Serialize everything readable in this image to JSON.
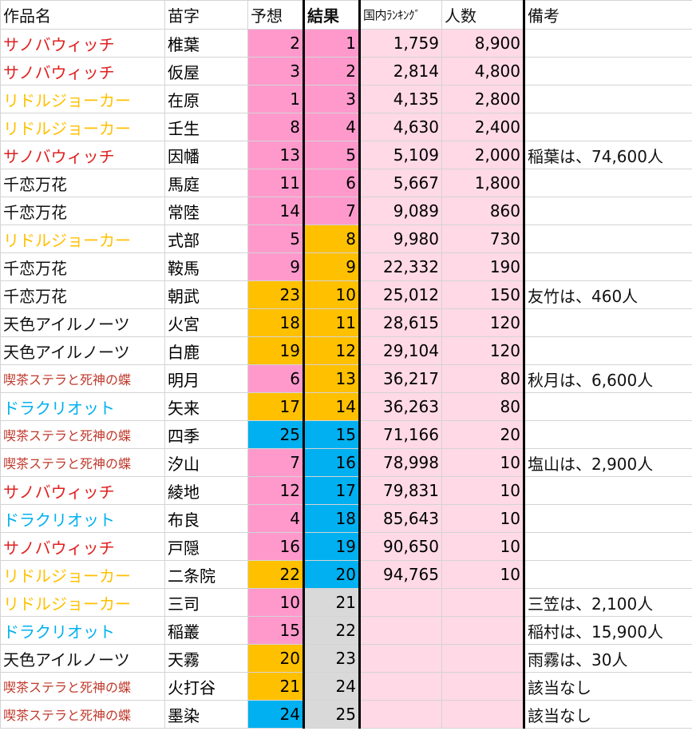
{
  "headers": {
    "work": "作品名",
    "surname": "苗字",
    "prediction": "予想",
    "result": "結果",
    "ranking": "国内ﾗﾝｷﾝｸﾞ",
    "people": "人数",
    "notes": "備考"
  },
  "colors": {
    "pink_strong": "#ff99cc",
    "pink_light": "#ffd9e6",
    "orange": "#ffc000",
    "blue": "#00b0f0",
    "gray": "#d9d9d9",
    "red_text": "#e02020",
    "yellow_text": "#ffc000",
    "blue_text": "#00b0f0",
    "darkred_text": "#c0392b"
  },
  "rows": [
    {
      "work": "サノバウィッチ",
      "work_color": "#e02020",
      "surname": "椎葉",
      "prediction": "2",
      "pred_bg": "#ff99cc",
      "result": "1",
      "result_bg": "#ff99cc",
      "ranking": "1,759",
      "people": "8,900",
      "notes": ""
    },
    {
      "work": "サノバウィッチ",
      "work_color": "#e02020",
      "surname": "仮屋",
      "prediction": "3",
      "pred_bg": "#ff99cc",
      "result": "2",
      "result_bg": "#ff99cc",
      "ranking": "2,814",
      "people": "4,800",
      "notes": ""
    },
    {
      "work": "リドルジョーカー",
      "work_color": "#ffc000",
      "surname": "在原",
      "prediction": "1",
      "pred_bg": "#ff99cc",
      "result": "3",
      "result_bg": "#ff99cc",
      "ranking": "4,135",
      "people": "2,800",
      "notes": ""
    },
    {
      "work": "リドルジョーカー",
      "work_color": "#ffc000",
      "surname": "壬生",
      "prediction": "8",
      "pred_bg": "#ff99cc",
      "result": "4",
      "result_bg": "#ff99cc",
      "ranking": "4,630",
      "people": "2,400",
      "notes": ""
    },
    {
      "work": "サノバウィッチ",
      "work_color": "#e02020",
      "surname": "因幡",
      "prediction": "13",
      "pred_bg": "#ff99cc",
      "result": "5",
      "result_bg": "#ff99cc",
      "ranking": "5,109",
      "people": "2,000",
      "notes": "稲葉は、74,600人"
    },
    {
      "work": "千恋万花",
      "work_color": "#111111",
      "surname": "馬庭",
      "prediction": "11",
      "pred_bg": "#ff99cc",
      "result": "6",
      "result_bg": "#ff99cc",
      "ranking": "5,667",
      "people": "1,800",
      "notes": ""
    },
    {
      "work": "千恋万花",
      "work_color": "#111111",
      "surname": "常陸",
      "prediction": "14",
      "pred_bg": "#ff99cc",
      "result": "7",
      "result_bg": "#ff99cc",
      "ranking": "9,089",
      "people": "860",
      "notes": ""
    },
    {
      "work": "リドルジョーカー",
      "work_color": "#ffc000",
      "surname": "式部",
      "prediction": "5",
      "pred_bg": "#ff99cc",
      "result": "8",
      "result_bg": "#ffc000",
      "ranking": "9,980",
      "people": "730",
      "notes": ""
    },
    {
      "work": "千恋万花",
      "work_color": "#111111",
      "surname": "鞍馬",
      "prediction": "9",
      "pred_bg": "#ff99cc",
      "result": "9",
      "result_bg": "#ffc000",
      "ranking": "22,332",
      "people": "190",
      "notes": ""
    },
    {
      "work": "千恋万花",
      "work_color": "#111111",
      "surname": "朝武",
      "prediction": "23",
      "pred_bg": "#ffc000",
      "result": "10",
      "result_bg": "#ffc000",
      "ranking": "25,012",
      "people": "150",
      "notes": "友竹は、460人"
    },
    {
      "work": "天色アイルノーツ",
      "work_color": "#111111",
      "surname": "火宮",
      "prediction": "18",
      "pred_bg": "#ffc000",
      "result": "11",
      "result_bg": "#ffc000",
      "ranking": "28,615",
      "people": "120",
      "notes": ""
    },
    {
      "work": "天色アイルノーツ",
      "work_color": "#111111",
      "surname": "白鹿",
      "prediction": "19",
      "pred_bg": "#ffc000",
      "result": "12",
      "result_bg": "#ffc000",
      "ranking": "29,104",
      "people": "120",
      "notes": ""
    },
    {
      "work": "喫茶ステラと死神の蝶",
      "work_color": "#c0392b",
      "small": true,
      "surname": "明月",
      "prediction": "6",
      "pred_bg": "#ff99cc",
      "result": "13",
      "result_bg": "#ffc000",
      "ranking": "36,217",
      "people": "80",
      "notes": "秋月は、6,600人"
    },
    {
      "work": "ドラクリオット",
      "work_color": "#00b0f0",
      "surname": "矢来",
      "prediction": "17",
      "pred_bg": "#ffc000",
      "result": "14",
      "result_bg": "#ffc000",
      "ranking": "36,263",
      "people": "80",
      "notes": ""
    },
    {
      "work": "喫茶ステラと死神の蝶",
      "work_color": "#c0392b",
      "small": true,
      "surname": "四季",
      "prediction": "25",
      "pred_bg": "#00b0f0",
      "result": "15",
      "result_bg": "#00b0f0",
      "ranking": "71,166",
      "people": "20",
      "notes": ""
    },
    {
      "work": "喫茶ステラと死神の蝶",
      "work_color": "#c0392b",
      "small": true,
      "surname": "汐山",
      "prediction": "7",
      "pred_bg": "#ff99cc",
      "result": "16",
      "result_bg": "#00b0f0",
      "ranking": "78,998",
      "people": "10",
      "notes": "塩山は、2,900人"
    },
    {
      "work": "サノバウィッチ",
      "work_color": "#e02020",
      "surname": "綾地",
      "prediction": "12",
      "pred_bg": "#ff99cc",
      "result": "17",
      "result_bg": "#00b0f0",
      "ranking": "79,831",
      "people": "10",
      "notes": ""
    },
    {
      "work": "ドラクリオット",
      "work_color": "#00b0f0",
      "surname": "布良",
      "prediction": "4",
      "pred_bg": "#ff99cc",
      "result": "18",
      "result_bg": "#00b0f0",
      "ranking": "85,643",
      "people": "10",
      "notes": ""
    },
    {
      "work": "サノバウィッチ",
      "work_color": "#e02020",
      "surname": "戸隠",
      "prediction": "16",
      "pred_bg": "#ff99cc",
      "result": "19",
      "result_bg": "#00b0f0",
      "ranking": "90,650",
      "people": "10",
      "notes": ""
    },
    {
      "work": "リドルジョーカー",
      "work_color": "#ffc000",
      "surname": "二条院",
      "prediction": "22",
      "pred_bg": "#ffc000",
      "result": "20",
      "result_bg": "#00b0f0",
      "ranking": "94,765",
      "people": "10",
      "notes": ""
    },
    {
      "work": "リドルジョーカー",
      "work_color": "#ffc000",
      "surname": "三司",
      "prediction": "10",
      "pred_bg": "#ff99cc",
      "result": "21",
      "result_bg": "#d9d9d9",
      "ranking": "",
      "people": "",
      "notes": "三笠は、2,100人"
    },
    {
      "work": "ドラクリオット",
      "work_color": "#00b0f0",
      "surname": "稲叢",
      "prediction": "15",
      "pred_bg": "#ff99cc",
      "result": "22",
      "result_bg": "#d9d9d9",
      "ranking": "",
      "people": "",
      "notes": "稲村は、15,900人"
    },
    {
      "work": "天色アイルノーツ",
      "work_color": "#111111",
      "surname": "天霧",
      "prediction": "20",
      "pred_bg": "#ffc000",
      "result": "23",
      "result_bg": "#d9d9d9",
      "ranking": "",
      "people": "",
      "notes": "雨霧は、30人"
    },
    {
      "work": "喫茶ステラと死神の蝶",
      "work_color": "#c0392b",
      "small": true,
      "surname": "火打谷",
      "prediction": "21",
      "pred_bg": "#ffc000",
      "result": "24",
      "result_bg": "#d9d9d9",
      "ranking": "",
      "people": "",
      "notes": "該当なし"
    },
    {
      "work": "喫茶ステラと死神の蝶",
      "work_color": "#c0392b",
      "small": true,
      "surname": "墨染",
      "prediction": "24",
      "pred_bg": "#00b0f0",
      "result": "25",
      "result_bg": "#d9d9d9",
      "ranking": "",
      "people": "",
      "notes": "該当なし"
    }
  ]
}
